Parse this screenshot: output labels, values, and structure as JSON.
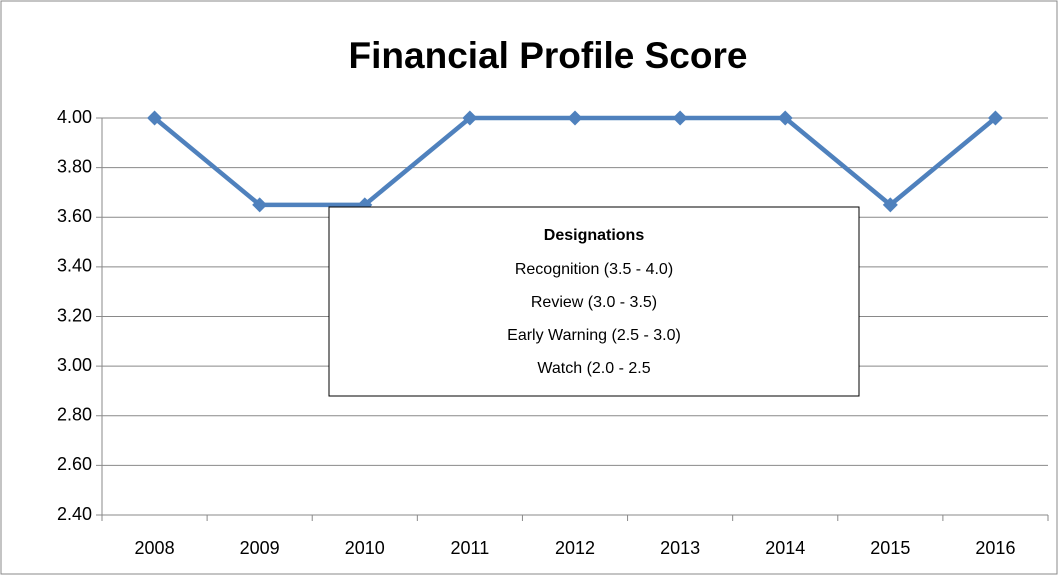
{
  "chart_data": {
    "type": "line",
    "title": "Financial Profile Score",
    "categories": [
      "2008",
      "2009",
      "2010",
      "2011",
      "2012",
      "2013",
      "2014",
      "2015",
      "2016"
    ],
    "series": [
      {
        "name": "Financial Profile Score",
        "color": "#4f81bd",
        "values": [
          4.0,
          3.65,
          3.65,
          4.0,
          4.0,
          4.0,
          4.0,
          3.65,
          4.0
        ]
      }
    ],
    "ylim": [
      2.4,
      4.0
    ],
    "yticks": [
      {
        "value": 2.4,
        "label": "2.40"
      },
      {
        "value": 2.6,
        "label": "2.60"
      },
      {
        "value": 2.8,
        "label": "2.80"
      },
      {
        "value": 3.0,
        "label": "3.00"
      },
      {
        "value": 3.2,
        "label": "3.20"
      },
      {
        "value": 3.4,
        "label": "3.40"
      },
      {
        "value": 3.6,
        "label": "3.60"
      },
      {
        "value": 3.8,
        "label": "3.80"
      },
      {
        "value": 4.0,
        "label": "4.00"
      }
    ],
    "grid": true,
    "annotation": {
      "title": "Designations",
      "lines": [
        "Recognition (3.5 - 4.0)",
        "Review (3.0 - 3.5)",
        "Early Warning (2.5 - 3.0)",
        "Watch (2.0 - 2.5"
      ]
    }
  }
}
